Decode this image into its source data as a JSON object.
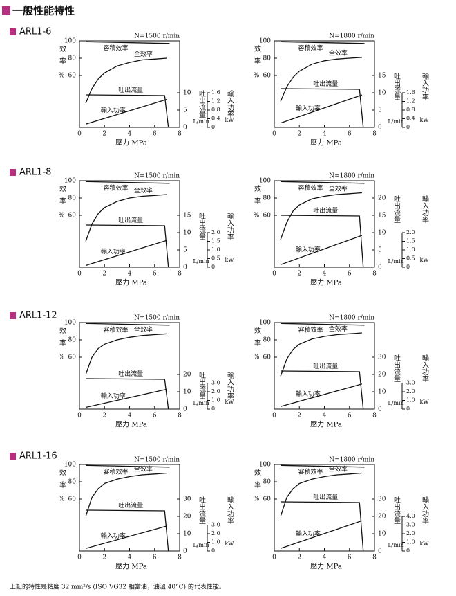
{
  "title": "一般性能特性",
  "sections": [
    "ARL1-6",
    "ARL1-8",
    "ARL1-12",
    "ARL1-16"
  ],
  "footnote": "上記的特性是粘度 32 mm²/s (ISO VG32 相當油，油溫 40°C) 的代表性能。",
  "chart_data": [
    {
      "type": "line",
      "subtitle": "N=1500 r/min",
      "x_label": "壓力 MPa",
      "y_label": "效率",
      "y_unit": "%",
      "y2_label": "吐出流量",
      "y2_unit": "L/min",
      "y3_label": "輸入功率",
      "y3_unit": "kW",
      "xlim": [
        0,
        8
      ],
      "xticks": [
        0,
        2,
        4,
        6,
        8
      ],
      "ylim": [
        0,
        100
      ],
      "yticks": [
        60,
        80,
        100
      ],
      "y2lim": [
        0,
        25
      ],
      "y2ticks": [
        0,
        5,
        10
      ],
      "y3lim": [
        0,
        4
      ],
      "y3ticks": [
        0,
        0.4,
        0.8,
        1.2,
        1.6
      ],
      "series": [
        {
          "name": "容積效率",
          "axis": "y",
          "color": "#111",
          "x": [
            0.5,
            7.2
          ],
          "values": [
            99,
            97
          ]
        },
        {
          "name": "全效率",
          "axis": "y",
          "color": "#111",
          "x": [
            0.5,
            1,
            1.5,
            2,
            3,
            4,
            5,
            6,
            7
          ],
          "values": [
            28,
            45,
            56,
            63,
            71,
            75,
            78,
            79,
            80
          ]
        },
        {
          "name": "吐出流量",
          "axis": "y2",
          "color": "#111",
          "x": [
            0.5,
            6.8,
            7.1
          ],
          "values": [
            9.4,
            9.2,
            0
          ]
        },
        {
          "name": "輸入功率",
          "axis": "y3",
          "color": "#111",
          "x": [
            0.5,
            7
          ],
          "values": [
            0.15,
            1.3
          ]
        }
      ]
    },
    {
      "type": "line",
      "subtitle": "N=1800 r/min",
      "x_label": "壓力 MPa",
      "y_label": "效率",
      "y_unit": "%",
      "y2_label": "吐出流量",
      "y2_unit": "L/min",
      "y3_label": "輸入功率",
      "y3_unit": "kW",
      "xlim": [
        0,
        8
      ],
      "xticks": [
        0,
        2,
        4,
        6,
        8
      ],
      "ylim": [
        0,
        100
      ],
      "yticks": [
        60,
        80,
        100
      ],
      "y2lim": [
        0,
        25
      ],
      "y2ticks": [
        0,
        5,
        10,
        15
      ],
      "y3lim": [
        0,
        4
      ],
      "y3ticks": [
        0,
        0.4,
        0.8,
        1.2,
        1.6
      ],
      "series": [
        {
          "name": "容積效率",
          "axis": "y",
          "color": "#111",
          "x": [
            0.5,
            7.2
          ],
          "values": [
            99,
            97
          ]
        },
        {
          "name": "全效率",
          "axis": "y",
          "color": "#111",
          "x": [
            0.5,
            1,
            1.5,
            2,
            3,
            4,
            5,
            6,
            7
          ],
          "values": [
            30,
            47,
            58,
            65,
            73,
            77,
            79,
            80,
            81
          ]
        },
        {
          "name": "吐出流量",
          "axis": "y2",
          "color": "#111",
          "x": [
            0.5,
            6.8,
            7.1
          ],
          "values": [
            11.2,
            11.0,
            0
          ]
        },
        {
          "name": "輸入功率",
          "axis": "y3",
          "color": "#111",
          "x": [
            0.5,
            7
          ],
          "values": [
            0.2,
            1.5
          ]
        }
      ]
    },
    {
      "type": "line",
      "subtitle": "N=1500 r/min",
      "x_label": "壓力 MPa",
      "y_label": "效率",
      "y_unit": "%",
      "y2_label": "吐出流量",
      "y2_unit": "L/min",
      "y3_label": "輸入功率",
      "y3_unit": "kW",
      "xlim": [
        0,
        8
      ],
      "xticks": [
        0,
        2,
        4,
        6,
        8
      ],
      "ylim": [
        0,
        100
      ],
      "yticks": [
        60,
        80,
        100
      ],
      "y2lim": [
        0,
        25
      ],
      "y2ticks": [
        0,
        5,
        10,
        15
      ],
      "y3lim": [
        0,
        5
      ],
      "y3ticks": [
        0,
        0.5,
        {
          "value": 1,
          "label": "1.0"
        },
        1.5,
        {
          "value": 2,
          "label": "2.0"
        }
      ],
      "series": [
        {
          "name": "容積效率",
          "axis": "y",
          "color": "#111",
          "x": [
            0.5,
            7.2
          ],
          "values": [
            99,
            97
          ]
        },
        {
          "name": "全效率",
          "axis": "y",
          "color": "#111",
          "x": [
            0.5,
            1,
            1.5,
            2,
            3,
            4,
            5,
            6,
            7
          ],
          "values": [
            30,
            50,
            62,
            69,
            76,
            80,
            82,
            83,
            84
          ]
        },
        {
          "name": "吐出流量",
          "axis": "y2",
          "color": "#111",
          "x": [
            0.5,
            6.8,
            7.1
          ],
          "values": [
            12.2,
            12.0,
            0
          ]
        },
        {
          "name": "輸入功率",
          "axis": "y3",
          "color": "#111",
          "x": [
            0.5,
            7
          ],
          "values": [
            0.1,
            1.56
          ]
        }
      ]
    },
    {
      "type": "line",
      "subtitle": "N=1800 r/min",
      "x_label": "壓力 MPa",
      "y_label": "效率",
      "y_unit": "%",
      "y2_label": "吐出流量",
      "y2_unit": "L/min",
      "y3_label": "輸入功率",
      "y3_unit": "kW",
      "xlim": [
        0,
        8
      ],
      "xticks": [
        0,
        2,
        4,
        6,
        8
      ],
      "ylim": [
        0,
        100
      ],
      "yticks": [
        60,
        80,
        100
      ],
      "y2lim": [
        0,
        25
      ],
      "y2ticks": [
        0,
        5,
        10,
        15,
        20
      ],
      "y3lim": [
        0,
        5
      ],
      "y3ticks": [
        0,
        0.5,
        {
          "value": 1,
          "label": "1.0"
        },
        1.5,
        {
          "value": 2,
          "label": "2.0"
        }
      ],
      "series": [
        {
          "name": "容積效率",
          "axis": "y",
          "color": "#111",
          "x": [
            0.5,
            7.2
          ],
          "values": [
            99,
            97
          ]
        },
        {
          "name": "全效率",
          "axis": "y",
          "color": "#111",
          "x": [
            0.5,
            1,
            1.5,
            2,
            3,
            4,
            5,
            6,
            7
          ],
          "values": [
            32,
            52,
            65,
            72,
            79,
            82,
            84,
            85,
            86
          ]
        },
        {
          "name": "吐出流量",
          "axis": "y2",
          "color": "#111",
          "x": [
            0.5,
            6.8,
            7.1
          ],
          "values": [
            15.0,
            14.8,
            0
          ]
        },
        {
          "name": "輸入功率",
          "axis": "y3",
          "color": "#111",
          "x": [
            0.5,
            7
          ],
          "values": [
            0.15,
            1.84
          ]
        }
      ]
    },
    {
      "type": "line",
      "subtitle": "N=1500 r/min",
      "x_label": "壓力 MPa",
      "y_label": "效率",
      "y_unit": "%",
      "y2_label": "吐出流量",
      "y2_unit": "L/min",
      "y3_label": "輸入功率",
      "y3_unit": "kW",
      "xlim": [
        0,
        8
      ],
      "xticks": [
        0,
        2,
        4,
        6,
        8
      ],
      "ylim": [
        0,
        100
      ],
      "yticks": [
        60,
        80,
        100
      ],
      "y2lim": [
        0,
        50
      ],
      "y2ticks": [
        0,
        10,
        20
      ],
      "y3lim": [
        0,
        10
      ],
      "y3ticks": [
        0,
        {
          "value": 1,
          "label": "1.0"
        },
        {
          "value": 2,
          "label": "2.0"
        },
        {
          "value": 3,
          "label": "3.0"
        }
      ],
      "series": [
        {
          "name": "容積效率",
          "axis": "y",
          "color": "#111",
          "x": [
            0.5,
            7.2
          ],
          "values": [
            99,
            97
          ]
        },
        {
          "name": "全效率",
          "axis": "y",
          "color": "#111",
          "x": [
            0.5,
            1,
            1.5,
            2,
            3,
            4,
            5,
            6,
            7
          ],
          "values": [
            40,
            60,
            70,
            75,
            80,
            83,
            85,
            86,
            87
          ]
        },
        {
          "name": "吐出流量",
          "axis": "y2",
          "color": "#111",
          "x": [
            0.5,
            6.8,
            7.1
          ],
          "values": [
            17.6,
            17.2,
            0
          ]
        },
        {
          "name": "輸入功率",
          "axis": "y3",
          "color": "#111",
          "x": [
            0.5,
            7
          ],
          "values": [
            0.2,
            2.3
          ]
        }
      ]
    },
    {
      "type": "line",
      "subtitle": "N=1800 r/min",
      "x_label": "壓力 MPa",
      "y_label": "效率",
      "y_unit": "%",
      "y2_label": "吐出流量",
      "y2_unit": "L/min",
      "y3_label": "輸入功率",
      "y3_unit": "kW",
      "xlim": [
        0,
        8
      ],
      "xticks": [
        0,
        2,
        4,
        6,
        8
      ],
      "ylim": [
        0,
        100
      ],
      "yticks": [
        60,
        80,
        100
      ],
      "y2lim": [
        0,
        50
      ],
      "y2ticks": [
        0,
        10,
        20,
        30
      ],
      "y3lim": [
        0,
        10
      ],
      "y3ticks": [
        0,
        {
          "value": 1,
          "label": "1.0"
        },
        {
          "value": 2,
          "label": "2.0"
        },
        {
          "value": 3,
          "label": "3.0"
        }
      ],
      "series": [
        {
          "name": "容積效率",
          "axis": "y",
          "color": "#111",
          "x": [
            0.5,
            7.2
          ],
          "values": [
            99,
            97
          ]
        },
        {
          "name": "全效率",
          "axis": "y",
          "color": "#111",
          "x": [
            0.5,
            1,
            1.5,
            2,
            3,
            4,
            5,
            6,
            7
          ],
          "values": [
            38,
            58,
            69,
            75,
            81,
            84,
            86,
            87,
            88
          ]
        },
        {
          "name": "吐出流量",
          "axis": "y2",
          "color": "#111",
          "x": [
            0.5,
            6.8,
            7.1
          ],
          "values": [
            22,
            21.6,
            0
          ]
        },
        {
          "name": "輸入功率",
          "axis": "y3",
          "color": "#111",
          "x": [
            0.5,
            7
          ],
          "values": [
            0.3,
            2.9
          ]
        }
      ]
    },
    {
      "type": "line",
      "subtitle": "N=1500 r/min",
      "x_label": "壓力 MPa",
      "y_label": "效率",
      "y_unit": "%",
      "y2_label": "吐出流量",
      "y2_unit": "L/min",
      "y3_label": "輸入功率",
      "y3_unit": "kW",
      "xlim": [
        0,
        8
      ],
      "xticks": [
        0,
        2,
        4,
        6,
        8
      ],
      "ylim": [
        0,
        100
      ],
      "yticks": [
        60,
        80,
        100
      ],
      "y2lim": [
        0,
        50
      ],
      "y2ticks": [
        0,
        10,
        20,
        30
      ],
      "y3lim": [
        0,
        10
      ],
      "y3ticks": [
        0,
        {
          "value": 1,
          "label": "1.0"
        },
        {
          "value": 2,
          "label": "2.0"
        },
        {
          "value": 3,
          "label": "3.0"
        }
      ],
      "series": [
        {
          "name": "容積效率",
          "axis": "y",
          "color": "#111",
          "x": [
            0.5,
            7.2
          ],
          "values": [
            99,
            97
          ]
        },
        {
          "name": "全效率",
          "axis": "y",
          "color": "#111",
          "x": [
            0.5,
            1,
            1.5,
            2,
            3,
            4,
            5,
            6,
            7
          ],
          "values": [
            40,
            62,
            72,
            78,
            83,
            86,
            88,
            89,
            90
          ]
        },
        {
          "name": "吐出流量",
          "axis": "y2",
          "color": "#111",
          "x": [
            0.5,
            6.8,
            7.1
          ],
          "values": [
            23.6,
            23.2,
            0
          ]
        },
        {
          "name": "輸入功率",
          "axis": "y3",
          "color": "#111",
          "x": [
            0.5,
            7
          ],
          "values": [
            0.3,
            2.9
          ]
        }
      ]
    },
    {
      "type": "line",
      "subtitle": "N=1800 r/min",
      "x_label": "壓力 MPa",
      "y_label": "效率",
      "y_unit": "%",
      "y2_label": "吐出流量",
      "y2_unit": "L/min",
      "y3_label": "輸入功率",
      "y3_unit": "kW",
      "xlim": [
        0,
        8
      ],
      "xticks": [
        0,
        2,
        4,
        6,
        8
      ],
      "ylim": [
        0,
        100
      ],
      "yticks": [
        60,
        80,
        100
      ],
      "y2lim": [
        0,
        50
      ],
      "y2ticks": [
        0,
        10,
        20,
        30
      ],
      "y3lim": [
        0,
        10
      ],
      "y3ticks": [
        0,
        {
          "value": 1,
          "label": "1.0"
        },
        {
          "value": 2,
          "label": "2.0"
        },
        {
          "value": 3,
          "label": "3.0"
        },
        {
          "value": 4,
          "label": "4.0"
        }
      ],
      "series": [
        {
          "name": "容積效率",
          "axis": "y",
          "color": "#111",
          "x": [
            0.5,
            7.2
          ],
          "values": [
            99,
            97
          ]
        },
        {
          "name": "全效率",
          "axis": "y",
          "color": "#111",
          "x": [
            0.5,
            1,
            1.5,
            2,
            3,
            4,
            5,
            6,
            7
          ],
          "values": [
            40,
            62,
            72,
            78,
            83,
            86,
            88,
            89,
            90
          ]
        },
        {
          "name": "吐出流量",
          "axis": "y2",
          "color": "#111",
          "x": [
            0.5,
            6.8,
            7.1
          ],
          "values": [
            28.4,
            28.0,
            0
          ]
        },
        {
          "name": "輸入功率",
          "axis": "y3",
          "color": "#111",
          "x": [
            0.5,
            7
          ],
          "values": [
            0.3,
            3.5
          ]
        }
      ]
    }
  ]
}
